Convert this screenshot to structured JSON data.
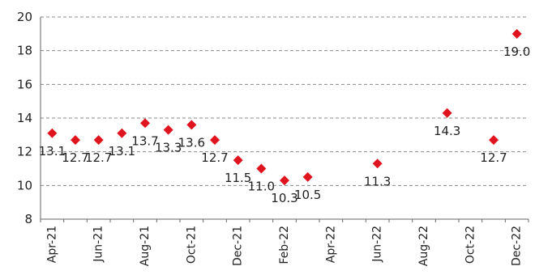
{
  "chart_data": {
    "type": "scatter",
    "title": "",
    "xlabel": "",
    "ylabel": "",
    "ylim": [
      8,
      20
    ],
    "yticks": [
      8,
      10,
      12,
      14,
      16,
      18,
      20
    ],
    "grid": true,
    "marker": "diamond",
    "marker_color": "#e0141e",
    "x_ticks": [
      "Apr-21",
      "Jun-21",
      "Aug-21",
      "Oct-21",
      "Dec-21",
      "Feb-22",
      "Apr-22",
      "Jun-22",
      "Aug-22",
      "Oct-22",
      "Dec-22"
    ],
    "categories": [
      "Apr-21",
      "May-21",
      "Jun-21",
      "Jul-21",
      "Aug-21",
      "Sep-21",
      "Oct-21",
      "Nov-21",
      "Dec-21",
      "Jan-22",
      "Feb-22",
      "Mar-22",
      "Apr-22",
      "May-22",
      "Jun-22",
      "Jul-22",
      "Aug-22",
      "Sep-22",
      "Oct-22",
      "Nov-22",
      "Dec-22"
    ],
    "points": [
      {
        "x": "Apr-21",
        "y": 13.1,
        "label": "13.1"
      },
      {
        "x": "May-21",
        "y": 12.7,
        "label": "12.7"
      },
      {
        "x": "Jun-21",
        "y": 12.7,
        "label": "12.7"
      },
      {
        "x": "Jul-21",
        "y": 13.1,
        "label": "13.1"
      },
      {
        "x": "Aug-21",
        "y": 13.7,
        "label": "13.7"
      },
      {
        "x": "Sep-21",
        "y": 13.3,
        "label": "13.3"
      },
      {
        "x": "Oct-21",
        "y": 13.6,
        "label": "13.6"
      },
      {
        "x": "Nov-21",
        "y": 12.7,
        "label": "12.7"
      },
      {
        "x": "Dec-21",
        "y": 11.5,
        "label": "11.5"
      },
      {
        "x": "Jan-22",
        "y": 11.0,
        "label": "11.0"
      },
      {
        "x": "Feb-22",
        "y": 10.3,
        "label": "10.3"
      },
      {
        "x": "Mar-22",
        "y": 10.5,
        "label": "10.5"
      },
      {
        "x": "Jun-22",
        "y": 11.3,
        "label": "11.3"
      },
      {
        "x": "Sep-22",
        "y": 14.3,
        "label": "14.3"
      },
      {
        "x": "Nov-22",
        "y": 12.7,
        "label": "12.7"
      },
      {
        "x": "Dec-22",
        "y": 19.0,
        "label": "19.0"
      }
    ]
  }
}
